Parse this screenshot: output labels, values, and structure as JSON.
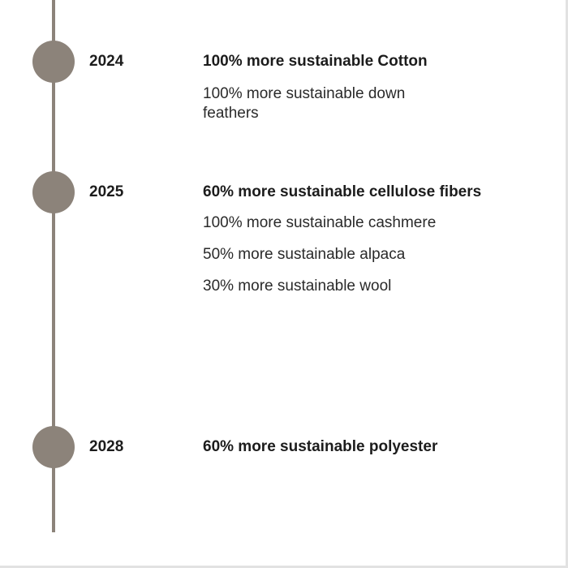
{
  "colors": {
    "line": "#8c837a",
    "text": "#1c1c1c"
  },
  "milestones": [
    {
      "year": "2024",
      "headline": "100% more sustainable Cotton",
      "items": [
        "100% more sustainable down feathers"
      ]
    },
    {
      "year": "2025",
      "headline": "60% more sustainable cellulose fibers",
      "items": [
        "100% more sustainable cashmere",
        "50% more sustainable alpaca",
        "30% more sustainable wool"
      ]
    },
    {
      "year": "2028",
      "headline": "60% more sustainable polyester",
      "items": []
    }
  ]
}
